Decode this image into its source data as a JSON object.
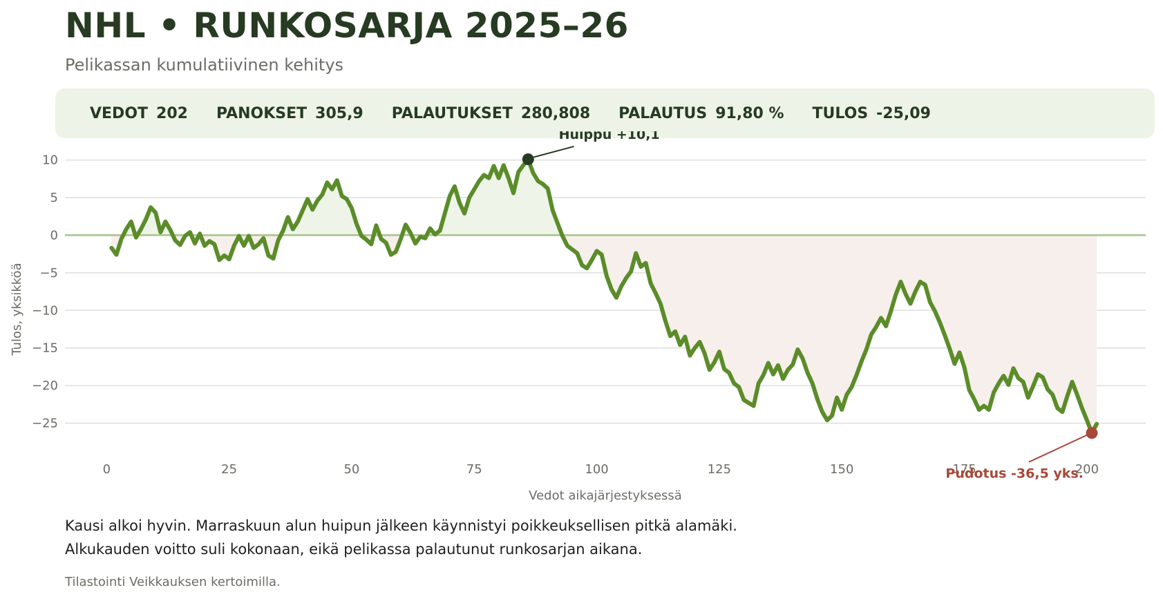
{
  "header": {
    "title": "NHL • RUNKOSARJA 2025–26",
    "subtitle": "Pelikassan kumulatiivinen kehitys"
  },
  "stats": [
    {
      "label": "VEDOT",
      "value": "202"
    },
    {
      "label": "PANOKSET",
      "value": "305,9"
    },
    {
      "label": "PALAUTUKSET",
      "value": "280,808"
    },
    {
      "label": "PALAUTUS",
      "value": "91,80 %"
    },
    {
      "label": "TULOS",
      "value": "-25,09"
    }
  ],
  "chart_data": {
    "type": "line",
    "xlabel": "Vedot aikajärjestyksessä",
    "ylabel": "Tulos, yksikköä",
    "xlim": [
      -8.5,
      212
    ],
    "ylim": [
      -28.9,
      12.9
    ],
    "xticks": [
      0,
      25,
      50,
      75,
      100,
      125,
      150,
      175,
      200
    ],
    "yticks": [
      -25,
      -20,
      -15,
      -10,
      -5,
      0,
      5,
      10
    ],
    "grid": "horizontal",
    "colors": {
      "line": "#5b8c2a",
      "positive_fill": "#eef4e8",
      "negative_fill": "#f7efeb",
      "zero_line": "#a7c289",
      "peak": "#263b22",
      "drop": "#a84838"
    },
    "keypoints": [
      [
        1,
        -1.7
      ],
      [
        2,
        -2.6
      ],
      [
        3,
        -0.5
      ],
      [
        4,
        0.8
      ],
      [
        5,
        1.8
      ],
      [
        6,
        -0.3
      ],
      [
        7,
        0.8
      ],
      [
        8,
        2.1
      ],
      [
        9,
        3.7
      ],
      [
        10,
        3.0
      ],
      [
        11,
        0.4
      ],
      [
        12,
        1.8
      ],
      [
        13,
        0.7
      ],
      [
        14,
        -0.7
      ],
      [
        15,
        -1.3
      ],
      [
        16,
        -0.1
      ],
      [
        17,
        0.4
      ],
      [
        18,
        -1.1
      ],
      [
        19,
        0.2
      ],
      [
        20,
        -1.4
      ],
      [
        21,
        -0.8
      ],
      [
        22,
        -1.2
      ],
      [
        23,
        -3.3
      ],
      [
        24,
        -2.7
      ],
      [
        25,
        -3.2
      ],
      [
        26,
        -1.4
      ],
      [
        27,
        -0.1
      ],
      [
        28,
        -1.4
      ],
      [
        29,
        -0.1
      ],
      [
        30,
        -1.7
      ],
      [
        31,
        -1.2
      ],
      [
        32,
        -0.4
      ],
      [
        33,
        -2.7
      ],
      [
        34,
        -3.1
      ],
      [
        35,
        -0.7
      ],
      [
        36,
        0.6
      ],
      [
        37,
        2.4
      ],
      [
        38,
        0.8
      ],
      [
        39,
        1.8
      ],
      [
        40,
        3.3
      ],
      [
        41,
        4.8
      ],
      [
        42,
        3.4
      ],
      [
        43,
        4.6
      ],
      [
        44,
        5.4
      ],
      [
        45,
        7.0
      ],
      [
        46,
        6.1
      ],
      [
        47,
        7.3
      ],
      [
        48,
        5.2
      ],
      [
        49,
        4.8
      ],
      [
        50,
        3.6
      ],
      [
        51,
        1.5
      ],
      [
        52,
        -0.1
      ],
      [
        53,
        -0.6
      ],
      [
        54,
        -1.2
      ],
      [
        55,
        1.3
      ],
      [
        56,
        -0.5
      ],
      [
        57,
        -1.0
      ],
      [
        58,
        -2.6
      ],
      [
        59,
        -2.2
      ],
      [
        60,
        -0.5
      ],
      [
        61,
        1.4
      ],
      [
        62,
        0.3
      ],
      [
        63,
        -1.1
      ],
      [
        64,
        -0.2
      ],
      [
        65,
        -0.4
      ],
      [
        66,
        0.9
      ],
      [
        67,
        0.1
      ],
      [
        68,
        0.6
      ],
      [
        69,
        2.9
      ],
      [
        70,
        5.2
      ],
      [
        71,
        6.5
      ],
      [
        72,
        4.3
      ],
      [
        73,
        2.9
      ],
      [
        74,
        5.0
      ],
      [
        75,
        6.1
      ],
      [
        76,
        7.2
      ],
      [
        77,
        8.0
      ],
      [
        78,
        7.6
      ],
      [
        79,
        9.2
      ],
      [
        80,
        7.6
      ],
      [
        81,
        9.3
      ],
      [
        82,
        7.6
      ],
      [
        83,
        5.6
      ],
      [
        84,
        8.4
      ],
      [
        85,
        9.3
      ],
      [
        86,
        10.1
      ],
      [
        87,
        8.3
      ],
      [
        88,
        7.2
      ],
      [
        89,
        6.8
      ],
      [
        90,
        6.2
      ],
      [
        91,
        3.3
      ],
      [
        92,
        1.6
      ],
      [
        93,
        -0.1
      ],
      [
        94,
        -1.4
      ],
      [
        95,
        -1.9
      ],
      [
        96,
        -2.4
      ],
      [
        97,
        -4.0
      ],
      [
        98,
        -4.4
      ],
      [
        99,
        -3.3
      ],
      [
        100,
        -2.1
      ],
      [
        101,
        -2.6
      ],
      [
        102,
        -5.4
      ],
      [
        103,
        -7.2
      ],
      [
        104,
        -8.3
      ],
      [
        105,
        -6.8
      ],
      [
        106,
        -5.7
      ],
      [
        107,
        -4.8
      ],
      [
        108,
        -2.4
      ],
      [
        109,
        -4.2
      ],
      [
        110,
        -3.7
      ],
      [
        111,
        -6.4
      ],
      [
        112,
        -7.7
      ],
      [
        113,
        -9.1
      ],
      [
        114,
        -11.4
      ],
      [
        115,
        -13.4
      ],
      [
        116,
        -12.8
      ],
      [
        117,
        -14.6
      ],
      [
        118,
        -13.5
      ],
      [
        119,
        -16.0
      ],
      [
        120,
        -15.0
      ],
      [
        121,
        -14.2
      ],
      [
        122,
        -15.7
      ],
      [
        123,
        -17.9
      ],
      [
        124,
        -16.9
      ],
      [
        125,
        -15.5
      ],
      [
        126,
        -17.8
      ],
      [
        127,
        -18.3
      ],
      [
        128,
        -19.7
      ],
      [
        129,
        -20.2
      ],
      [
        130,
        -21.9
      ],
      [
        131,
        -22.3
      ],
      [
        132,
        -22.7
      ],
      [
        133,
        -19.7
      ],
      [
        134,
        -18.6
      ],
      [
        135,
        -17.0
      ],
      [
        136,
        -18.5
      ],
      [
        137,
        -17.3
      ],
      [
        138,
        -19.1
      ],
      [
        139,
        -17.9
      ],
      [
        140,
        -17.2
      ],
      [
        141,
        -15.2
      ],
      [
        142,
        -16.4
      ],
      [
        143,
        -18.3
      ],
      [
        144,
        -19.7
      ],
      [
        145,
        -21.8
      ],
      [
        146,
        -23.5
      ],
      [
        147,
        -24.6
      ],
      [
        148,
        -24.0
      ],
      [
        149,
        -21.6
      ],
      [
        150,
        -23.2
      ],
      [
        151,
        -21.2
      ],
      [
        152,
        -20.2
      ],
      [
        153,
        -18.6
      ],
      [
        154,
        -16.8
      ],
      [
        155,
        -15.2
      ],
      [
        156,
        -13.2
      ],
      [
        157,
        -12.2
      ],
      [
        158,
        -11.0
      ],
      [
        159,
        -12.1
      ],
      [
        160,
        -10.1
      ],
      [
        161,
        -7.9
      ],
      [
        162,
        -6.2
      ],
      [
        163,
        -7.8
      ],
      [
        164,
        -9.1
      ],
      [
        165,
        -7.5
      ],
      [
        166,
        -6.2
      ],
      [
        167,
        -6.6
      ],
      [
        168,
        -8.9
      ],
      [
        169,
        -10.1
      ],
      [
        170,
        -11.6
      ],
      [
        171,
        -13.3
      ],
      [
        172,
        -15.1
      ],
      [
        173,
        -17.1
      ],
      [
        174,
        -15.6
      ],
      [
        175,
        -17.6
      ],
      [
        176,
        -20.6
      ],
      [
        177,
        -21.8
      ],
      [
        178,
        -23.2
      ],
      [
        179,
        -22.7
      ],
      [
        180,
        -23.2
      ],
      [
        181,
        -20.9
      ],
      [
        182,
        -19.7
      ],
      [
        183,
        -18.7
      ],
      [
        184,
        -19.9
      ],
      [
        185,
        -17.7
      ],
      [
        186,
        -19.0
      ],
      [
        187,
        -19.5
      ],
      [
        188,
        -21.6
      ],
      [
        189,
        -20.1
      ],
      [
        190,
        -18.5
      ],
      [
        191,
        -18.9
      ],
      [
        192,
        -20.5
      ],
      [
        193,
        -21.2
      ],
      [
        194,
        -23.0
      ],
      [
        195,
        -23.5
      ],
      [
        196,
        -21.4
      ],
      [
        197,
        -19.5
      ],
      [
        198,
        -21.2
      ],
      [
        199,
        -23.0
      ],
      [
        200,
        -24.6
      ],
      [
        201,
        -26.3
      ],
      [
        202,
        -25.1
      ]
    ],
    "annotations": {
      "peak": {
        "x": 86,
        "y": 10.1,
        "label": "Huippu +10,1",
        "label_x": 89,
        "label_y": 14.1
      },
      "drop": {
        "x": 201,
        "y": -26.3,
        "label": "Pudotus -36,5 yks.",
        "label_x": 185,
        "label_y": -31.5
      }
    }
  },
  "caption": [
    "Kausi alkoi hyvin. Marraskuun alun huipun jälkeen käynnistyi poikkeuksellisen pitkä alamäki.",
    "Alkukauden voitto suli kokonaan, eikä pelikassa palautunut runkosarjan aikana."
  ],
  "source": "Tilastointi Veikkauksen kertoimilla."
}
